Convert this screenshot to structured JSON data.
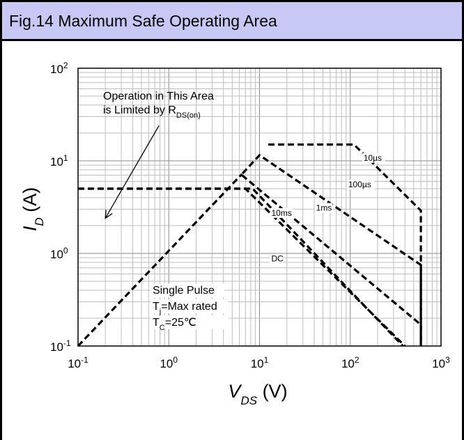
{
  "header": {
    "title": "Fig.14 Maximum Safe Operating Area"
  },
  "chart_data": {
    "type": "line",
    "title": "Fig.14 Maximum Safe Operating Area",
    "xlabel": {
      "main": "V",
      "sub": "DS",
      "unit": "(V)"
    },
    "ylabel": {
      "main": "I",
      "sub": "D",
      "unit": "(A)"
    },
    "x_scale": "log",
    "y_scale": "log",
    "xlim": [
      0.1,
      1000
    ],
    "ylim": [
      0.1,
      100
    ],
    "grid": true,
    "x_ticks": [
      {
        "base": "10",
        "exp": "-1"
      },
      {
        "base": "10",
        "exp": "0"
      },
      {
        "base": "10",
        "exp": "1"
      },
      {
        "base": "10",
        "exp": "2"
      },
      {
        "base": "10",
        "exp": "3"
      }
    ],
    "y_ticks": [
      {
        "base": "10",
        "exp": "-1"
      },
      {
        "base": "10",
        "exp": "0"
      },
      {
        "base": "10",
        "exp": "1"
      },
      {
        "base": "10",
        "exp": "2"
      }
    ],
    "series": [
      {
        "name": "Limited by RDS(on)",
        "x": [
          0.1,
          6.4
        ],
        "y": [
          0.1,
          7.2
        ]
      },
      {
        "name": "10µs",
        "x": [
          12.5,
          29,
          110,
          600,
          600
        ],
        "y": [
          15,
          15,
          15,
          2.9,
          0.1
        ]
      },
      {
        "name": "100µs",
        "x": [
          6.5,
          10,
          600,
          600
        ],
        "y": [
          7.3,
          11.5,
          0.75,
          0.1
        ]
      },
      {
        "name": "1ms",
        "x": [
          6.4,
          600,
          600
        ],
        "y": [
          7.0,
          0.17,
          0.1
        ]
      },
      {
        "name": "10ms",
        "x": [
          0.1,
          7,
          400
        ],
        "y": [
          5,
          5,
          0.1
        ]
      },
      {
        "name": "DC",
        "x": [
          0.1,
          8.4,
          380
        ],
        "y": [
          5,
          5,
          0.1
        ]
      }
    ],
    "line_labels": [
      {
        "text": "10µs",
        "x": 140,
        "y": 10
      },
      {
        "text": "100µs",
        "x": 95,
        "y": 5.2
      },
      {
        "text": "1ms",
        "x": 42,
        "y": 2.9
      },
      {
        "text": "10ms",
        "x": 13.5,
        "y": 2.55
      },
      {
        "text": "DC",
        "x": 13.5,
        "y": 0.82
      }
    ],
    "annotations": {
      "region": {
        "line1": "Operation  in This Area",
        "line2": "is Limited by R",
        "line2_sub": "DS(on)"
      },
      "arrow": {
        "from": [
          0.78,
          24
        ],
        "to": [
          0.2,
          2.4
        ]
      },
      "conditions": [
        {
          "pre": "Single Pulse",
          "sub": "",
          "post": ""
        },
        {
          "pre": "T",
          "sub": "j",
          "post": "=Max rated"
        },
        {
          "pre": "T",
          "sub": "C",
          "post": "=25℃"
        }
      ]
    }
  }
}
